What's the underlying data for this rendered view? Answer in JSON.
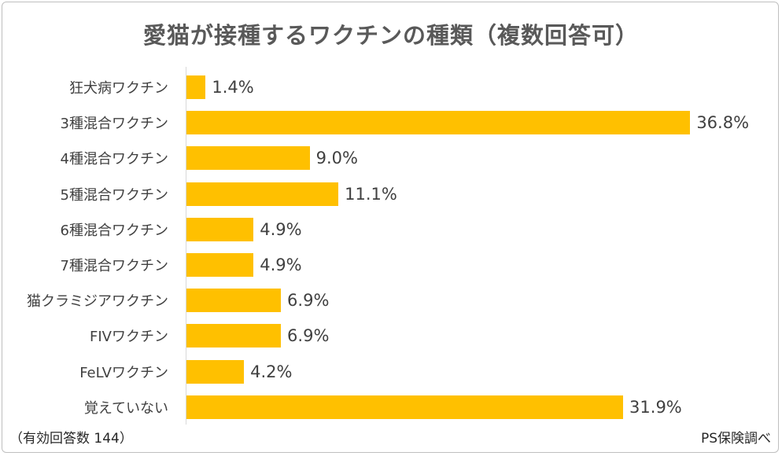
{
  "chart_data": {
    "type": "bar",
    "orientation": "horizontal",
    "title": "愛猫が接種するワクチンの種類（複数回答可）",
    "categories": [
      "狂犬病ワクチン",
      "3種混合ワクチン",
      "4種混合ワクチン",
      "5種混合ワクチン",
      "6種混合ワクチン",
      "7種混合ワクチン",
      "猫クラミジアワクチン",
      "FIVワクチン",
      "FeLVワクチン",
      "覚えていない"
    ],
    "values": [
      1.4,
      36.8,
      9.0,
      11.1,
      4.9,
      4.9,
      6.9,
      6.9,
      4.2,
      31.9
    ],
    "value_labels": [
      "1.4%",
      "36.8%",
      "9.0%",
      "11.1%",
      "4.9%",
      "4.9%",
      "6.9%",
      "6.9%",
      "4.2%",
      "31.9%"
    ],
    "unit": "%",
    "bar_color": "#ffc000",
    "grid": false,
    "legend": "none"
  },
  "footer": {
    "respondents": "（有効回答数 144）",
    "source": "PS保険調べ"
  }
}
